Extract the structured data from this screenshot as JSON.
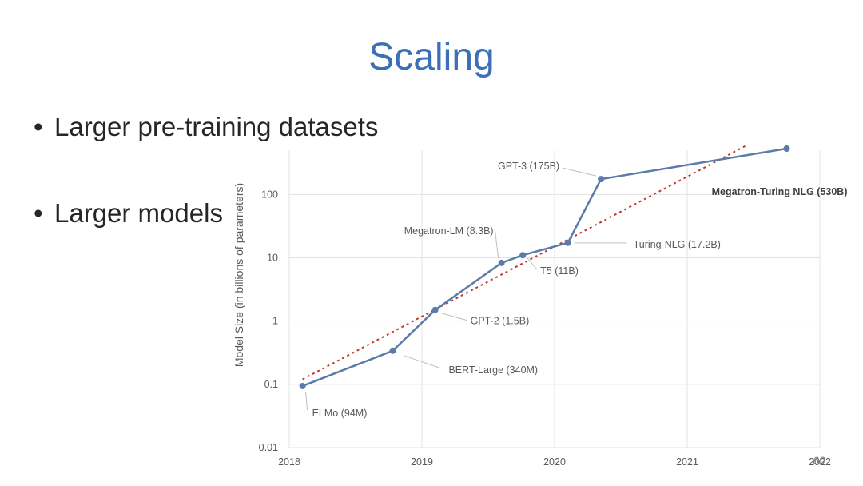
{
  "slide": {
    "title": "Scaling",
    "bullets": [
      "Larger pre-training datasets",
      "Larger models"
    ],
    "page_number": "60"
  },
  "chart_data": {
    "type": "line",
    "ylabel": "Model Size (in billions of parameters)",
    "xlabel": "",
    "y_scale": "log",
    "xlim": [
      2018,
      2022
    ],
    "ylim": [
      0.01,
      500
    ],
    "x_ticks": [
      "2018",
      "2019",
      "2020",
      "2021",
      "2022"
    ],
    "y_ticks": [
      {
        "value": 0.01,
        "label": "0.01"
      },
      {
        "value": 0.1,
        "label": "0.1"
      },
      {
        "value": 1,
        "label": "1"
      },
      {
        "value": 10,
        "label": "10"
      },
      {
        "value": 100,
        "label": "100"
      }
    ],
    "grid": true,
    "series": [
      {
        "color": "#5b7ba8",
        "points": [
          {
            "x": 2018.1,
            "y": 0.094,
            "label": "ELMo (94M)"
          },
          {
            "x": 2018.78,
            "y": 0.34,
            "label": "BERT-Large (340M)"
          },
          {
            "x": 2019.1,
            "y": 1.5,
            "label": "GPT-2 (1.5B)"
          },
          {
            "x": 2019.6,
            "y": 8.3,
            "label": "Megatron-LM (8.3B)"
          },
          {
            "x": 2019.76,
            "y": 11,
            "label": "T5 (11B)"
          },
          {
            "x": 2020.1,
            "y": 17.2,
            "label": "Turing-NLG (17.2B)"
          },
          {
            "x": 2020.35,
            "y": 175,
            "label": "GPT-3 (175B)"
          },
          {
            "x": 2021.75,
            "y": 530,
            "label": "Megatron-Turing NLG (530B)",
            "bold": true
          }
        ]
      }
    ],
    "trendline": {
      "style": "dotted",
      "color": "#c0392b",
      "from": {
        "x": 2018.1,
        "y": 0.12
      },
      "to": {
        "x": 2021.45,
        "y": 600
      }
    }
  },
  "colors": {
    "title": "#3b6fb6",
    "line": "#5b7ba8",
    "trend": "#c0392b",
    "grid": "#e3e3e3"
  }
}
